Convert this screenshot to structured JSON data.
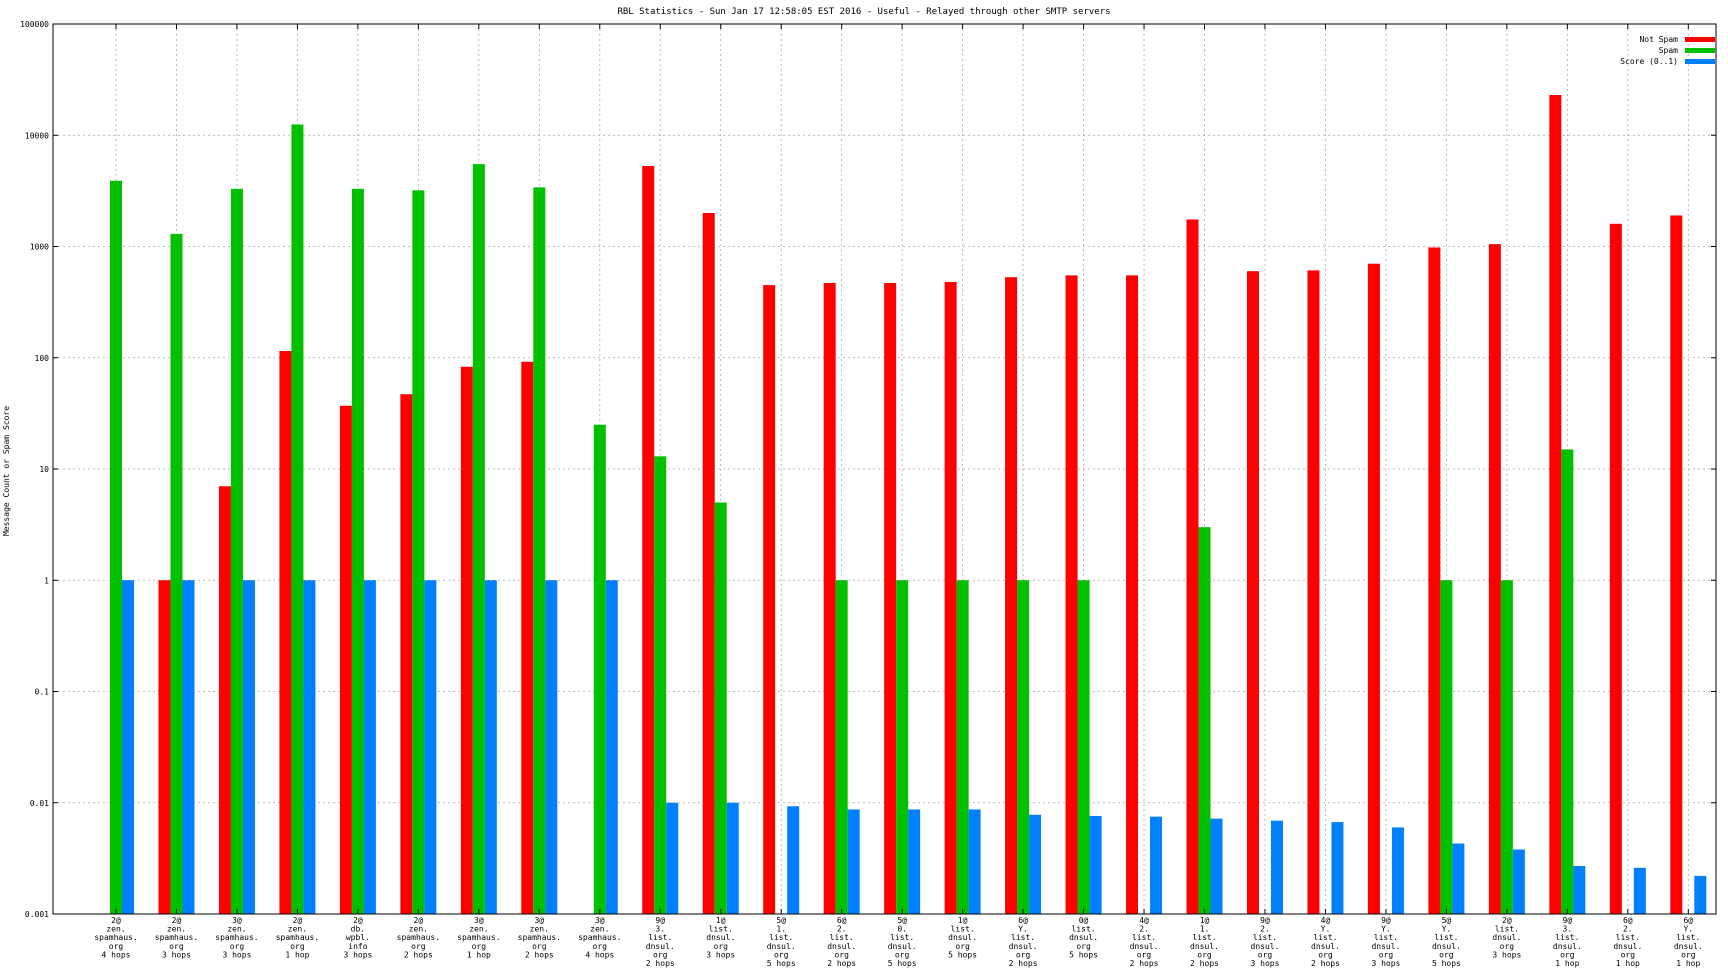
{
  "chart_data": {
    "type": "bar",
    "title": "RBL Statistics - Sun Jan 17 12:58:05 EST 2016 - Useful - Relayed through other SMTP servers",
    "xlabel": "",
    "ylabel": "Message Count or Spam Score",
    "yscale": "log",
    "ylim": [
      0.001,
      100000
    ],
    "grid": true,
    "legend_position": "top-right",
    "yticks": [
      "0.001",
      "0.01",
      "0.1",
      "1",
      "10",
      "100",
      "1000",
      "10000",
      "100000"
    ],
    "categories": [
      [
        "2@",
        "zen.",
        "spamhaus.",
        "org",
        "4 hops"
      ],
      [
        "2@",
        "zen.",
        "spamhaus.",
        "org",
        "3 hops"
      ],
      [
        "3@",
        "zen.",
        "spamhaus.",
        "org",
        "3 hops"
      ],
      [
        "2@",
        "zen.",
        "spamhaus.",
        "org",
        "1 hop"
      ],
      [
        "2@",
        "db.",
        "wpbl.",
        "info",
        "3 hops"
      ],
      [
        "2@",
        "zen.",
        "spamhaus.",
        "org",
        "2 hops"
      ],
      [
        "3@",
        "zen.",
        "spamhaus.",
        "org",
        "1 hop"
      ],
      [
        "3@",
        "zen.",
        "spamhaus.",
        "org",
        "2 hops"
      ],
      [
        "3@",
        "zen.",
        "spamhaus.",
        "org",
        "4 hops"
      ],
      [
        "9@",
        "3.",
        "list.",
        "dnsul.",
        "org",
        "2 hops"
      ],
      [
        "1@",
        "list.",
        "dnsul.",
        "org",
        "3 hops"
      ],
      [
        "5@",
        "1.",
        "list.",
        "dnsul.",
        "org",
        "5 hops"
      ],
      [
        "6@",
        "2.",
        "list.",
        "dnsul.",
        "org",
        "2 hops"
      ],
      [
        "5@",
        "0.",
        "list.",
        "dnsul.",
        "org",
        "5 hops"
      ],
      [
        "1@",
        "list.",
        "dnsul.",
        "org",
        "5 hops"
      ],
      [
        "6@",
        "Y.",
        "list.",
        "dnsul.",
        "org",
        "2 hops"
      ],
      [
        "0@",
        "list.",
        "dnsul.",
        "org",
        "5 hops"
      ],
      [
        "4@",
        "2.",
        "list.",
        "dnsul.",
        "org",
        "2 hops"
      ],
      [
        "1@",
        "1.",
        "list.",
        "dnsul.",
        "org",
        "2 hops"
      ],
      [
        "9@",
        "2.",
        "list.",
        "dnsul.",
        "org",
        "3 hops"
      ],
      [
        "4@",
        "Y.",
        "list.",
        "dnsul.",
        "org",
        "2 hops"
      ],
      [
        "9@",
        "Y.",
        "list.",
        "dnsul.",
        "org",
        "3 hops"
      ],
      [
        "5@",
        "Y.",
        "list.",
        "dnsul.",
        "org",
        "5 hops"
      ],
      [
        "2@",
        "list.",
        "dnsul.",
        "org",
        "3 hops"
      ],
      [
        "9@",
        "3.",
        "list.",
        "dnsul.",
        "org",
        "1 hop"
      ],
      [
        "6@",
        "2.",
        "list.",
        "dnsul.",
        "org",
        "1 hop"
      ],
      [
        "6@",
        "Y.",
        "list.",
        "dnsul.",
        "org",
        "1 hop"
      ]
    ],
    "series": [
      {
        "name": "Not Spam",
        "color": "#ff0000",
        "values": [
          null,
          1,
          7,
          115,
          37,
          47,
          83,
          92,
          null,
          5300,
          2000,
          450,
          470,
          470,
          480,
          530,
          550,
          550,
          1750,
          600,
          610,
          700,
          980,
          1050,
          23000,
          1600,
          1900
        ]
      },
      {
        "name": "Spam",
        "color": "#00c000",
        "values": [
          3900,
          1300,
          3300,
          12500,
          3300,
          3200,
          5500,
          3400,
          25,
          13,
          5,
          null,
          1,
          1,
          1,
          1,
          1,
          null,
          3,
          null,
          null,
          null,
          1,
          1,
          15,
          null,
          null
        ]
      },
      {
        "name": "Score (0..1)",
        "color": "#0080ff",
        "values": [
          1,
          1,
          1,
          1,
          1,
          1,
          1,
          1,
          1,
          0.01,
          0.01,
          0.0093,
          0.0087,
          0.0087,
          0.0087,
          0.0078,
          0.0076,
          0.0075,
          0.0072,
          0.0069,
          0.0067,
          0.006,
          0.0043,
          0.0038,
          0.0027,
          0.0026,
          0.0022
        ]
      }
    ]
  }
}
